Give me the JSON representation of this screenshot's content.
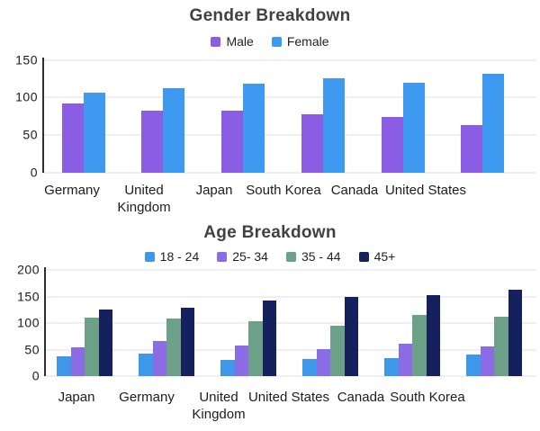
{
  "page": {
    "background": "#ffffff"
  },
  "colors": {
    "axis_line": "#2e2d3a",
    "gridline": "#f0eef3",
    "title_text": "#414141",
    "tick_text": "#1c1c1c"
  },
  "chart_data": [
    {
      "type": "bar",
      "title": "Gender Breakdown",
      "categories": [
        "Germany",
        "United Kingdom",
        "Japan",
        "South Korea",
        "Canada",
        "United States"
      ],
      "series": [
        {
          "name": "Male",
          "color": "#8a5de4",
          "values": [
            92,
            83,
            82,
            78,
            74,
            63
          ]
        },
        {
          "name": "Female",
          "color": "#3d9af0",
          "values": [
            106,
            112,
            118,
            126,
            120,
            132
          ]
        }
      ],
      "xlabel": "",
      "ylabel": "",
      "ylim": [
        0,
        150
      ],
      "yticks": [
        0,
        50,
        100,
        150
      ],
      "grid": true,
      "legend_position": "top"
    },
    {
      "type": "bar",
      "title": "Age Breakdown",
      "categories": [
        "Japan",
        "Germany",
        "United Kingdom",
        "United States",
        "Canada",
        "South Korea"
      ],
      "series": [
        {
          "name": "18 - 24",
          "color": "#3e97e8",
          "values": [
            38,
            42,
            30,
            32,
            34,
            40
          ]
        },
        {
          "name": "25- 34",
          "color": "#8b6ce4",
          "values": [
            54,
            66,
            58,
            51,
            61,
            56
          ]
        },
        {
          "name": "35 - 44",
          "color": "#6da089",
          "values": [
            110,
            108,
            103,
            95,
            116,
            112
          ]
        },
        {
          "name": "45+",
          "color": "#15215c",
          "values": [
            126,
            128,
            142,
            149,
            152,
            163
          ]
        }
      ],
      "xlabel": "",
      "ylabel": "",
      "ylim": [
        0,
        200
      ],
      "yticks": [
        0,
        50,
        100,
        150,
        200
      ],
      "grid": true,
      "legend_position": "top"
    }
  ]
}
